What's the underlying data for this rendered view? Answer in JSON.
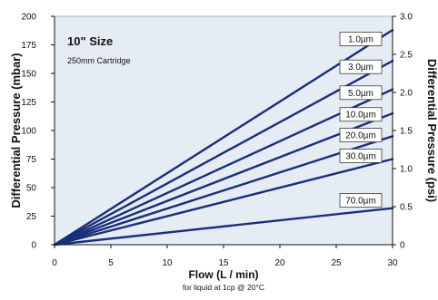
{
  "colors": {
    "plot_background": "#e6ecf4",
    "line": "#1a2f7a",
    "label_box": "#ffffff",
    "label_border": "#3a3a3a"
  },
  "chart_data": {
    "type": "line",
    "title": "10\" Size",
    "subtitle": "250mm Cartridge",
    "xlabel": "Flow (L / min)",
    "xlabel_note": "for liquid at 1cp @ 20°C",
    "ylabel": "Differential Pressure (mbar)",
    "y2label": "Differential Pressure (psi)",
    "xlim": [
      0,
      30
    ],
    "ylim": [
      0,
      200
    ],
    "y2lim": [
      0,
      3.0
    ],
    "x_ticks": [
      "0",
      "5",
      "10",
      "15",
      "20",
      "25",
      "30"
    ],
    "y_ticks": [
      "0",
      "25",
      "50",
      "75",
      "100",
      "125",
      "150",
      "175",
      "200"
    ],
    "y2_ticks": [
      "0",
      "0.5",
      "1.0",
      "1.5",
      "2.0",
      "2.5",
      "3.0"
    ],
    "grid": false,
    "series": [
      {
        "name": "1.0µm",
        "x": [
          0,
          30
        ],
        "y": [
          0,
          188
        ]
      },
      {
        "name": "3.0µm",
        "x": [
          0,
          30
        ],
        "y": [
          0,
          161
        ]
      },
      {
        "name": "5.0µm",
        "x": [
          0,
          30
        ],
        "y": [
          0,
          136
        ]
      },
      {
        "name": "10.0µm",
        "x": [
          0,
          30
        ],
        "y": [
          0,
          115
        ]
      },
      {
        "name": "20.0µm",
        "x": [
          0,
          30
        ],
        "y": [
          0,
          95
        ]
      },
      {
        "name": "30.0µm",
        "x": [
          0,
          30
        ],
        "y": [
          0,
          75
        ]
      },
      {
        "name": "70.0µm",
        "x": [
          0,
          30
        ],
        "y": [
          0,
          32
        ]
      }
    ]
  }
}
